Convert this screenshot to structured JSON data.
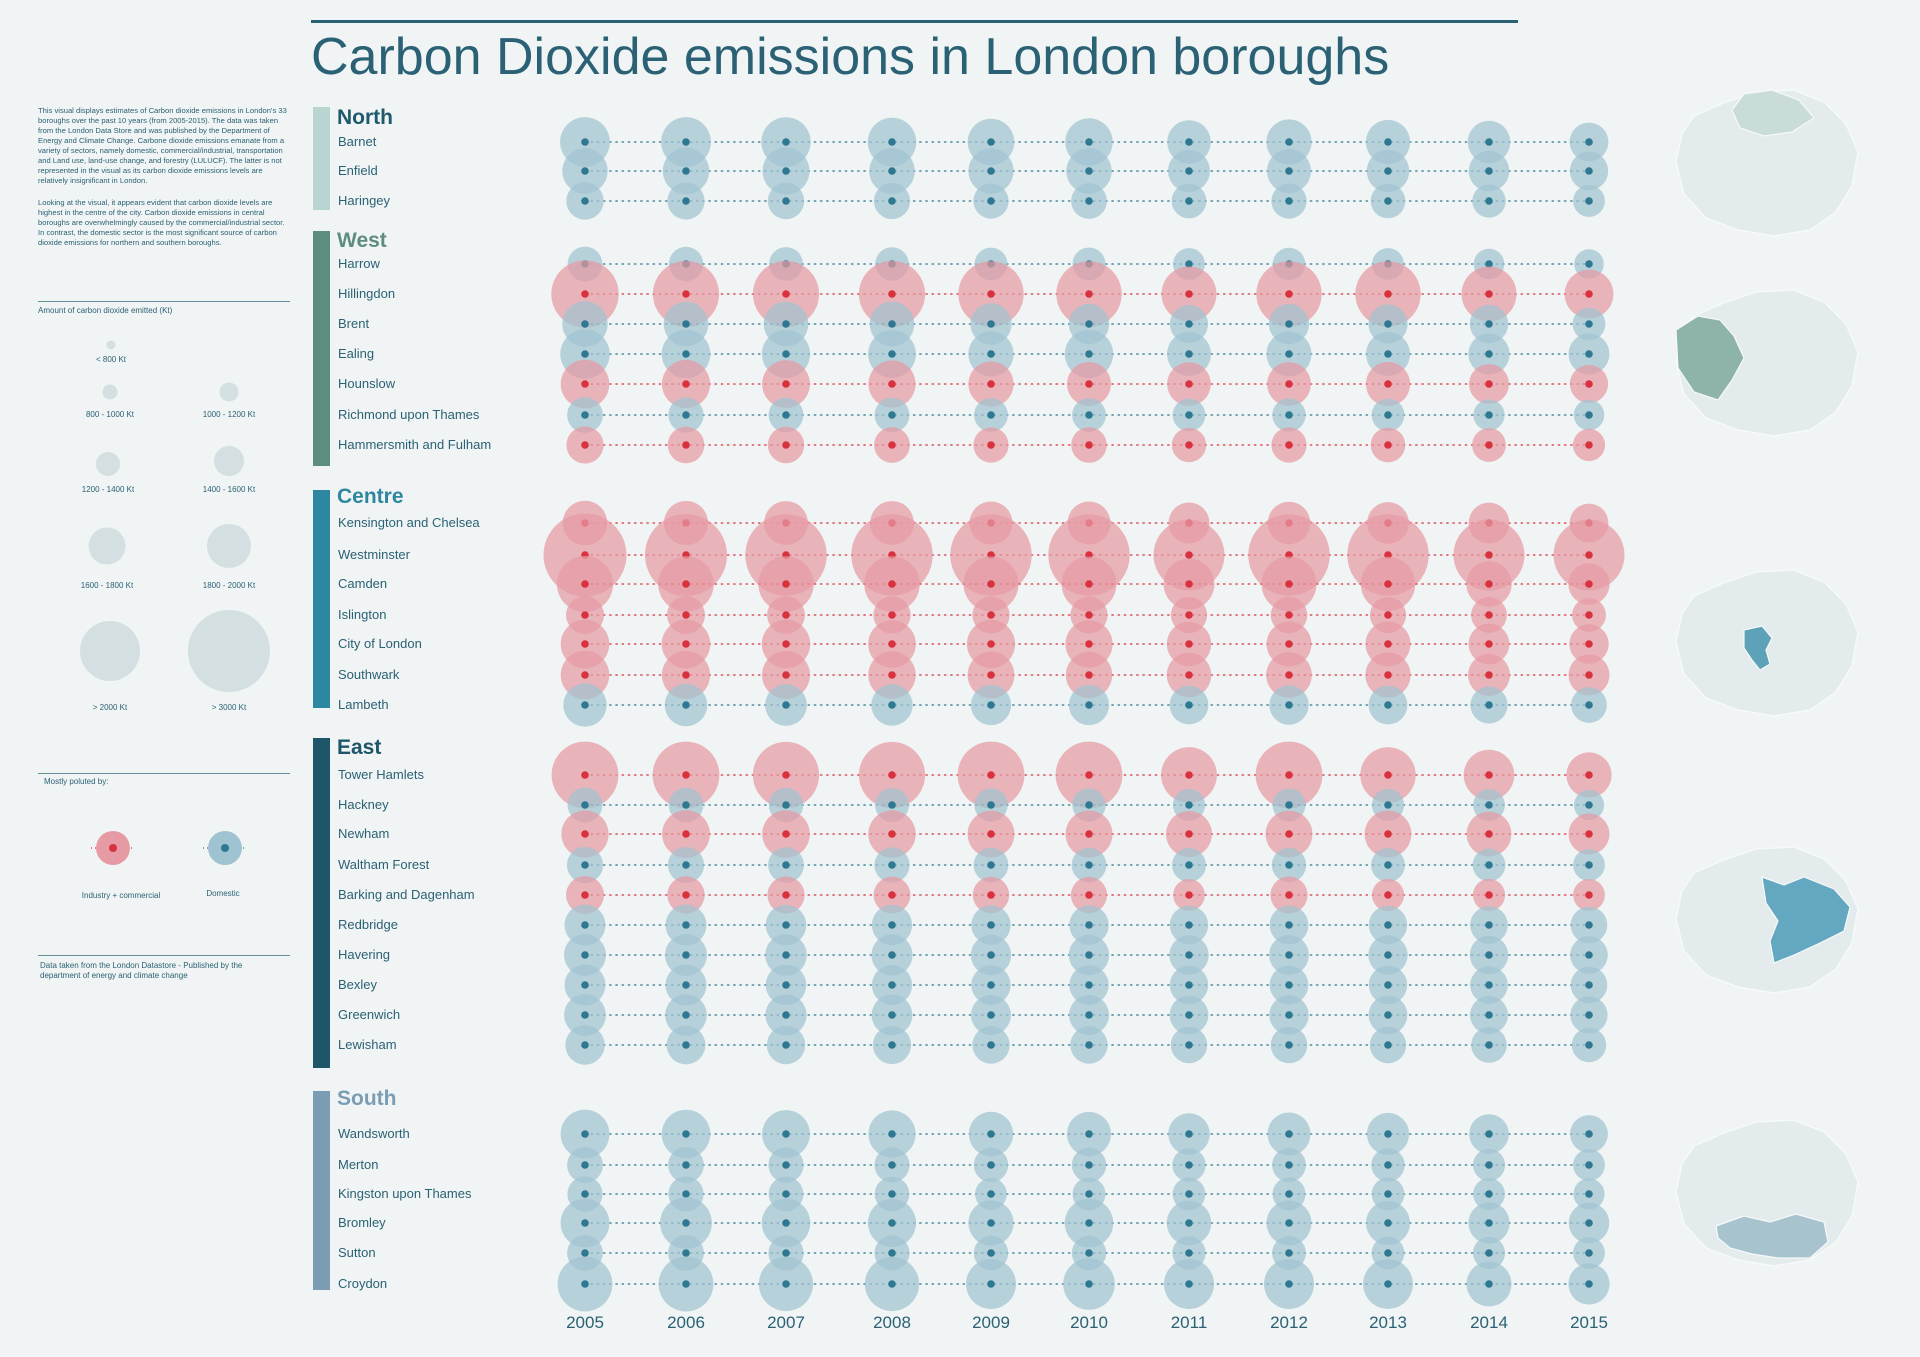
{
  "title": "Carbon Dioxide emissions in London boroughs",
  "intro": [
    "This visual displays estimates of Carbon dioxide emissions in London's 33 boroughs over the past 10 years (from 2005-2015). The data was taken from the London Data Store and was published by the Department of Energy and Climate Change. Carbone dioxide emissions emanate from a variety of sectors, namely domestic, commercial/industrial, transportation and Land use, land-use change, and forestry (LULUCF). The latter is not represented in the visual as its carbon dioxide emissions levels are relatively insignificant in London.",
    "Looking at the visual, it appears evident that carbon dioxide levels are highest in the centre of the city. Carbon dioxide emissions in central boroughs are overwhelmingly caused by the commercial/industrial sector. In contrast, the domestic sector is the most significant source of carbon dioxide emissions for northern and southern boroughs."
  ],
  "size_legend": {
    "title": "Amount of carbon dioxide emitted (Kt)",
    "items": [
      "< 800 Kt",
      "800 - 1000 Kt",
      "1000 - 1200 Kt",
      "1200 - 1400 Kt",
      "1400 - 1600 Kt",
      "1600 - 1800 Kt",
      "1800 - 2000 Kt",
      "> 2000 Kt",
      "> 3000 Kt"
    ]
  },
  "color_legend": {
    "title": "Mostly poluted by:",
    "items": [
      "Industry + commercial",
      "Domestic"
    ]
  },
  "source": "Data taken from the London Datastore - Published by the department of energy and climate change",
  "colors": {
    "domestic": "#9fc3d0",
    "domestic_dot": "#2e7891",
    "industry": "#e69aa4",
    "industry_dot": "#d9323f",
    "legend_circle": "#d3dfe1",
    "text": "#2a6174",
    "north": "#b9d5d1",
    "west": "#5e8c7f",
    "centre": "#2e87a0",
    "east": "#1d5669",
    "south": "#7a9db3"
  },
  "map_icons": [
    "north-map-icon",
    "west-map-icon",
    "centre-map-icon",
    "east-map-icon",
    "south-map-icon"
  ],
  "chart_data": {
    "type": "scatter",
    "title": "Carbon Dioxide emissions in London boroughs",
    "x": [
      "2005",
      "2006",
      "2007",
      "2008",
      "2009",
      "2010",
      "2011",
      "2012",
      "2013",
      "2014",
      "2015"
    ],
    "regions": [
      {
        "name": "North",
        "boroughs": [
          {
            "name": "Barnet",
            "sector": "domestic",
            "kt": [
              1480,
              1470,
              1450,
              1400,
              1290,
              1340,
              1130,
              1220,
              1160,
              1080,
              900
            ]
          },
          {
            "name": "Enfield",
            "sector": "domestic",
            "kt": [
              1230,
              1280,
              1310,
              1240,
              1220,
              1230,
              1050,
              1150,
              1080,
              980,
              880
            ]
          },
          {
            "name": "Haringey",
            "sector": "domestic",
            "kt": [
              830,
              820,
              790,
              780,
              740,
              760,
              720,
              740,
              710,
              660,
              600
            ]
          }
        ]
      },
      {
        "name": "West",
        "boroughs": [
          {
            "name": "Harrow",
            "sector": "domestic",
            "kt": [
              720,
              700,
              680,
              670,
              640,
              650,
              600,
              630,
              600,
              560,
              520
            ]
          },
          {
            "name": "Hillingdon",
            "sector": "industry",
            "kt": [
              2700,
              2600,
              2600,
              2600,
              2550,
              2550,
              1800,
              2550,
              2550,
              1800,
              1420
            ]
          },
          {
            "name": "Brent",
            "sector": "domestic",
            "kt": [
              1230,
              1180,
              1180,
              1180,
              1020,
              970,
              870,
              960,
              910,
              880,
              640
            ]
          },
          {
            "name": "Ealing",
            "sector": "domestic",
            "kt": [
              1450,
              1400,
              1380,
              1360,
              1220,
              1390,
              1150,
              1200,
              1150,
              1010,
              1000
            ]
          },
          {
            "name": "Hounslow",
            "sector": "industry",
            "kt": [
              1400,
              1380,
              1360,
              1320,
              1210,
              1150,
              1130,
              1140,
              1160,
              950,
              870
            ]
          },
          {
            "name": "Richmond upon Thames",
            "sector": "domestic",
            "kt": [
              760,
              740,
              720,
              720,
              680,
              680,
              640,
              660,
              640,
              580,
              560
            ]
          },
          {
            "name": "Hammersmith and Fulham",
            "sector": "industry",
            "kt": [
              820,
              800,
              790,
              760,
              740,
              750,
              700,
              740,
              710,
              680,
              620
            ]
          }
        ]
      },
      {
        "name": "Centre",
        "boroughs": [
          {
            "name": "Kensington and Chelsea",
            "sector": "industry",
            "kt": [
              1180,
              1160,
              1140,
              1140,
              1100,
              1100,
              1000,
              1080,
              1040,
              990,
              900
            ]
          },
          {
            "name": "Westminster",
            "sector": "industry",
            "kt": [
              4100,
              4000,
              3950,
              3950,
              3950,
              3950,
              3000,
              3950,
              3950,
              3000,
              3000
            ]
          },
          {
            "name": "Camden",
            "sector": "industry",
            "kt": [
              1880,
              1840,
              1820,
              1840,
              1800,
              1780,
              1530,
              1800,
              1760,
              1230,
              1020
            ]
          },
          {
            "name": "Islington",
            "sector": "industry",
            "kt": [
              860,
              860,
              850,
              820,
              820,
              820,
              780,
              800,
              780,
              760,
              680
            ]
          },
          {
            "name": "City of London",
            "sector": "industry",
            "kt": [
              1400,
              1400,
              1390,
              1350,
              1380,
              1320,
              1170,
              1200,
              1200,
              990,
              920
            ]
          },
          {
            "name": "Southwark",
            "sector": "industry",
            "kt": [
              1400,
              1380,
              1370,
              1340,
              1300,
              1280,
              1180,
              1240,
              1220,
              1050,
              1000
            ]
          },
          {
            "name": "Lambeth",
            "sector": "domestic",
            "kt": [
              1120,
              1080,
              1040,
              1020,
              960,
              960,
              900,
              920,
              900,
              820,
              760
            ]
          }
        ]
      },
      {
        "name": "East",
        "boroughs": [
          {
            "name": "Tower Hamlets",
            "sector": "industry",
            "kt": [
              2650,
              2650,
              2600,
              2600,
              2650,
              2650,
              1850,
              2650,
              1820,
              1520,
              1220
            ]
          },
          {
            "name": "Hackney",
            "sector": "domestic",
            "kt": [
              720,
              710,
              700,
              680,
              660,
              660,
              620,
              650,
              620,
              600,
              540
            ]
          },
          {
            "name": "Newham",
            "sector": "industry",
            "kt": [
              1320,
              1360,
              1350,
              1340,
              1300,
              1310,
              1260,
              1300,
              1300,
              1190,
              1000
            ]
          },
          {
            "name": "Waltham Forest",
            "sector": "domestic",
            "kt": [
              780,
              780,
              760,
              740,
              720,
              720,
              690,
              700,
              680,
              640,
              600
            ]
          },
          {
            "name": "Barking and Dagenham",
            "sector": "industry",
            "kt": [
              860,
              830,
              820,
              810,
              790,
              780,
              600,
              820,
              620,
              620,
              600
            ]
          },
          {
            "name": "Redbridge",
            "sector": "domestic",
            "kt": [
              1000,
              1000,
              980,
              960,
              920,
              920,
              880,
              900,
              880,
              840,
              800
            ]
          },
          {
            "name": "Havering",
            "sector": "domestic",
            "kt": [
              1050,
              1050,
              1030,
              1010,
              970,
              970,
              920,
              940,
              920,
              880,
              840
            ]
          },
          {
            "name": "Bexley",
            "sector": "domestic",
            "kt": [
              1000,
              1000,
              980,
              960,
              920,
              920,
              880,
              900,
              880,
              840,
              800
            ]
          },
          {
            "name": "Greenwich",
            "sector": "domestic",
            "kt": [
              1040,
              1030,
              1010,
              990,
              950,
              950,
              900,
              920,
              900,
              860,
              820
            ]
          },
          {
            "name": "Lewisham",
            "sector": "domestic",
            "kt": [
              920,
              900,
              880,
              870,
              830,
              830,
              790,
              800,
              790,
              750,
              700
            ]
          }
        ]
      },
      {
        "name": "South",
        "boroughs": [
          {
            "name": "Wandsworth",
            "sector": "domestic",
            "kt": [
              1420,
              1400,
              1360,
              1320,
              1170,
              1160,
              1030,
              1100,
              1060,
              930,
              850
            ]
          },
          {
            "name": "Merton",
            "sector": "domestic",
            "kt": [
              760,
              760,
              740,
              730,
              700,
              700,
              660,
              680,
              660,
              620,
              600
            ]
          },
          {
            "name": "Kingston upon Thames",
            "sector": "domestic",
            "kt": [
              740,
              740,
              720,
              710,
              600,
              650,
              640,
              650,
              640,
              600,
              580
            ]
          },
          {
            "name": "Bromley",
            "sector": "domestic",
            "kt": [
              1420,
              1600,
              1400,
              1380,
              1220,
              1400,
              1180,
              1200,
              1150,
              1010,
              980
            ]
          },
          {
            "name": "Sutton",
            "sector": "domestic",
            "kt": [
              760,
              760,
              740,
              730,
              700,
              700,
              660,
              680,
              640,
              620,
              600
            ]
          },
          {
            "name": "Croydon",
            "sector": "domestic",
            "kt": [
              1790,
              1790,
              1750,
              1750,
              1490,
              1590,
              1490,
              1490,
              1480,
              1200,
              1010
            ]
          }
        ]
      }
    ]
  }
}
